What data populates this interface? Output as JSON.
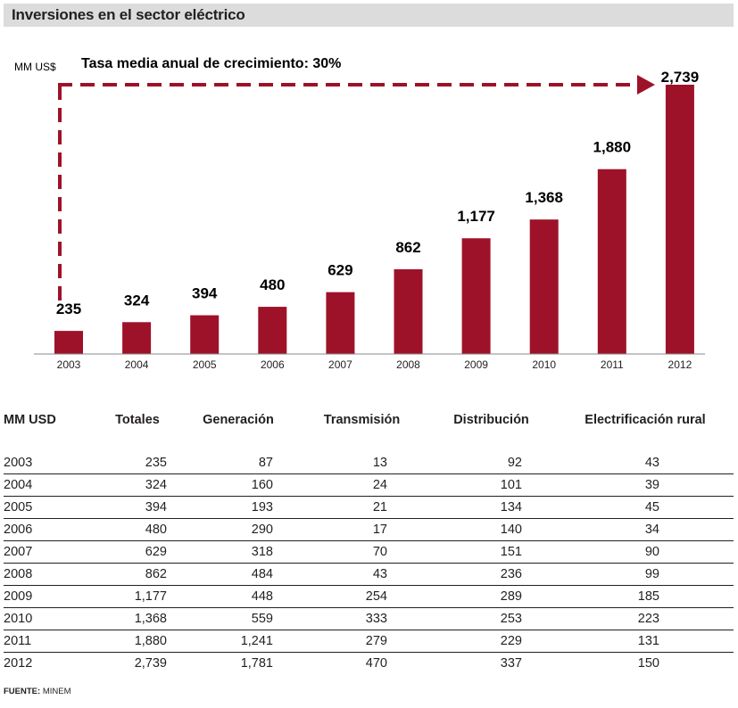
{
  "title": "Inversiones en el sector eléctrico",
  "chart_data": {
    "type": "bar",
    "unit_label": "MM US$",
    "annotation": "Tasa media anual de crecimiento: 30%",
    "categories": [
      "2003",
      "2004",
      "2005",
      "2006",
      "2007",
      "2008",
      "2009",
      "2010",
      "2011",
      "2012"
    ],
    "values": [
      235,
      324,
      394,
      480,
      629,
      862,
      1177,
      1368,
      1880,
      2739
    ],
    "value_labels": [
      "235",
      "324",
      "394",
      "480",
      "629",
      "862",
      "1,177",
      "1,368",
      "1,880",
      "2,739"
    ],
    "ylim": [
      0,
      2739
    ],
    "grid": false,
    "legend": "none",
    "bar_color": "#9e1229",
    "arrow_color": "#9e1229"
  },
  "table": {
    "headers": [
      "MM USD",
      "Totales",
      "Generación",
      "Transmisión",
      "Distribución",
      "Electrificación rural"
    ],
    "rows": [
      [
        "2003",
        "235",
        "87",
        "13",
        "92",
        "43"
      ],
      [
        "2004",
        "324",
        "160",
        "24",
        "101",
        "39"
      ],
      [
        "2005",
        "394",
        "193",
        "21",
        "134",
        "45"
      ],
      [
        "2006",
        "480",
        "290",
        "17",
        "140",
        "34"
      ],
      [
        "2007",
        "629",
        "318",
        "70",
        "151",
        "90"
      ],
      [
        "2008",
        "862",
        "484",
        "43",
        "236",
        "99"
      ],
      [
        "2009",
        "1,177",
        "448",
        "254",
        "289",
        "185"
      ],
      [
        "2010",
        "1,368",
        "559",
        "333",
        "253",
        "223"
      ],
      [
        "2011",
        "1,880",
        "1,241",
        "279",
        "229",
        "131"
      ],
      [
        "2012",
        "2,739",
        "1,781",
        "470",
        "337",
        "150"
      ]
    ]
  },
  "source": {
    "label": "FUENTE:",
    "text": "MINEM"
  }
}
